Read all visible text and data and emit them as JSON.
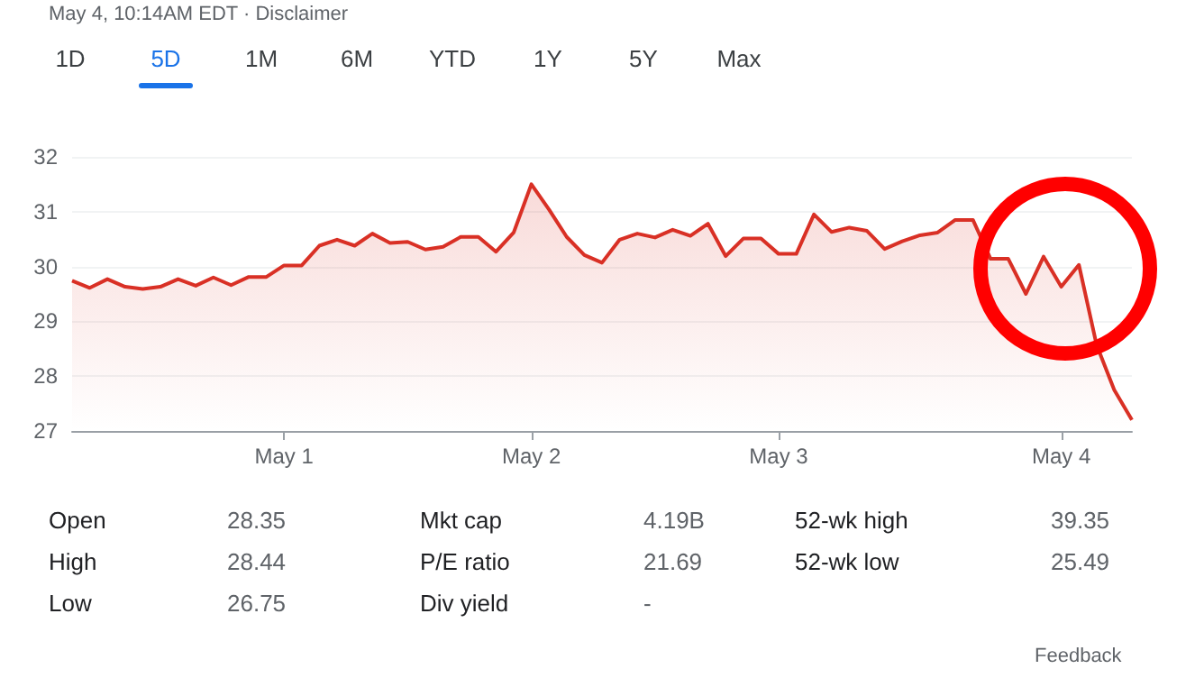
{
  "chart_data": {
    "type": "area",
    "color": "#d93025",
    "categories": [
      null,
      null,
      null,
      null,
      null,
      null,
      null,
      null,
      null,
      null,
      null,
      null,
      "May 1",
      null,
      null,
      null,
      null,
      null,
      null,
      null,
      null,
      null,
      null,
      null,
      null,
      null,
      "May 2",
      null,
      null,
      null,
      null,
      null,
      null,
      null,
      null,
      null,
      null,
      null,
      null,
      null,
      "May 3",
      null,
      null,
      null,
      null,
      null,
      null,
      null,
      null,
      null,
      null,
      null,
      null,
      null,
      null,
      null,
      "May 4",
      null,
      null,
      null,
      null
    ],
    "values": [
      29.74,
      29.61,
      29.77,
      29.63,
      29.59,
      29.63,
      29.77,
      29.65,
      29.8,
      29.66,
      29.81,
      29.81,
      30.02,
      30.02,
      30.38,
      30.49,
      30.38,
      30.6,
      30.43,
      30.45,
      30.31,
      30.36,
      30.54,
      30.54,
      30.27,
      30.62,
      31.5,
      31.04,
      30.54,
      30.21,
      30.07,
      30.49,
      30.6,
      30.53,
      30.67,
      30.56,
      30.78,
      30.19,
      30.51,
      30.51,
      30.23,
      30.23,
      30.95,
      30.63,
      30.71,
      30.65,
      30.32,
      30.46,
      30.57,
      30.62,
      30.85,
      30.85,
      30.14,
      30.14,
      29.5,
      30.18,
      29.63,
      30.03,
      28.57,
      27.75,
      27.2
    ],
    "ylim": [
      27,
      32
    ],
    "yticks": [
      27,
      28,
      29,
      30,
      31,
      32
    ],
    "grid": "y",
    "marker": "none",
    "annotations": [
      "May 4, 10:14AM EDT · Disclaimer",
      "1D",
      "5D",
      "1M",
      "6M",
      "YTD",
      "1Y",
      "5Y",
      "Max",
      "Open",
      "28.35",
      "Mkt cap",
      "4.19B",
      "52-wk high",
      "39.35",
      "High",
      "28.44",
      "P/E ratio",
      "21.69",
      "52-wk low",
      "25.49",
      "Low",
      "26.75",
      "Div yield",
      "-",
      "Feedback"
    ]
  }
}
